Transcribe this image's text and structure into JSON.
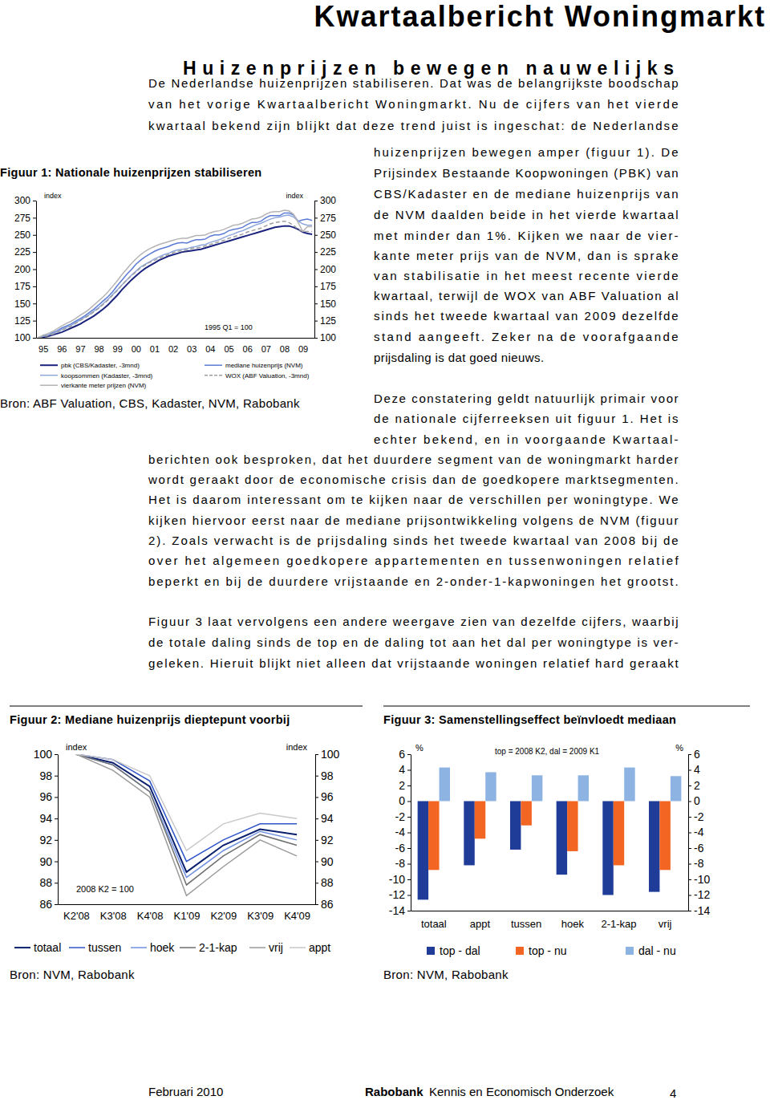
{
  "header": {
    "title": "Kwartaalbericht Woningmarkt"
  },
  "article": {
    "heading": "Huizenprijzen bewegen nauwelijks",
    "paragraphs": [
      [
        "De Nederlandse huizenprijzen stabiliseren. Dat was de belangrijkste boodschap",
        "van het vorige Kwartaalbericht Woningmarkt. Nu de cijfers van het vierde",
        "kwartaal bekend zijn blijkt dat deze trend juist is ingeschat: de Nederlandse",
        "huizenprijzen bewegen amper (figuur 1). De",
        "Prijsindex Bestaande Koopwoningen (PBK) van",
        "CBS/Kadaster en de mediane huizenprijs van",
        "de NVM daalden beide in het vierde kwartaal",
        "met minder dan 1%. Kijken we naar de vier-",
        "kante meter prijs van de NVM, dan is sprake",
        "van stabilisatie in het meest recente vierde",
        "kwartaal, terwijl de WOX van ABF Valuation al",
        "sinds het tweede kwartaal van 2009 dezelfde",
        "stand aangeeft. Zeker na de voorafgaande",
        "prijsdaling is dat goed nieuws."
      ],
      [
        "Deze constatering geldt natuurlijk primair voor",
        "de nationale cijferreeksen uit figuur 1. Het is",
        "echter bekend, en in voorgaande Kwartaal-",
        "berichten ook besproken, dat het duurdere segment van de woningmarkt harder",
        "wordt geraakt door de economische crisis dan de goedkopere marktsegmenten.",
        "Het is daarom interessant om te kijken naar de verschillen per woningtype. We",
        "kijken hiervoor eerst naar de mediane prijsontwikkeling volgens de NVM (figuur",
        "2). Zoals verwacht is de prijsdaling sinds het tweede kwartaal van 2008 bij de",
        "over het algemeen goedkopere appartementen en tussenwoningen relatief",
        "beperkt en bij de duurdere vrijstaande en 2-onder-1-kapwoningen het grootst."
      ],
      [
        "Figuur 3 laat vervolgens een andere weergave zien van dezelfde cijfers, waarbij",
        "de totale daling sinds de top en de daling tot aan het dal per woningtype is ver-",
        "geleken. Hieruit blijkt niet alleen dat vrijstaande woningen relatief hard geraakt"
      ]
    ]
  },
  "chart_data": [
    {
      "type": "line",
      "title": "Figuur 1: Nationale huizenprijzen stabiliseren",
      "source": "Bron: ABF Valuation, CBS, Kadaster, NVM, Rabobank",
      "annotation": "1995 Q1 = 100",
      "ylabel": "index",
      "y2label": "index",
      "categories": [
        null,
        "95",
        null,
        null,
        null,
        "96",
        null,
        null,
        null,
        "97",
        null,
        null,
        null,
        "98",
        null,
        null,
        null,
        "99",
        null,
        null,
        null,
        "00",
        null,
        null,
        null,
        "01",
        null,
        null,
        null,
        "02",
        null,
        null,
        null,
        "03",
        null,
        null,
        null,
        "04",
        null,
        null,
        null,
        "05",
        null,
        null,
        null,
        "06",
        null,
        null,
        null,
        "07",
        null,
        null,
        null,
        "08",
        null,
        null,
        null,
        "09",
        null,
        null
      ],
      "series": [
        {
          "name": "pbk (CBS/Kadaster, -3mnd)",
          "color": "#1a237e",
          "line_style": "solid",
          "values": [
            100,
            101,
            102,
            104,
            106,
            108,
            111,
            114,
            117,
            120,
            124,
            128,
            132,
            137,
            142,
            148,
            155,
            162,
            170,
            177,
            184,
            190,
            196,
            201,
            205,
            209,
            213,
            216,
            219,
            221,
            223,
            225,
            226,
            227,
            228,
            229,
            231,
            233,
            235,
            237,
            239,
            241,
            243,
            245,
            247,
            249,
            251,
            253,
            255,
            257,
            259,
            261,
            262,
            263,
            263,
            261,
            258,
            254,
            252,
            251
          ]
        },
        {
          "name": "mediane huizenprijs (NVM)",
          "color": "#5b7bd5",
          "line_style": "solid",
          "values": [
            100,
            103,
            104,
            107,
            110,
            114,
            117,
            120,
            124,
            128,
            132,
            137,
            142,
            148,
            154,
            160,
            167,
            176,
            184,
            192,
            199,
            207,
            213,
            218,
            222,
            226,
            229,
            231,
            233,
            236,
            238,
            239,
            238,
            241,
            243,
            243,
            244,
            248,
            250,
            250,
            252,
            256,
            258,
            259,
            261,
            265,
            268,
            268,
            270,
            275,
            278,
            278,
            278,
            282,
            282,
            279,
            270,
            272,
            273,
            271
          ]
        },
        {
          "name": "koopsommen (Kadaster, -3mnd)",
          "color": "#8fa8dc",
          "line_style": "solid",
          "values": [
            100,
            102,
            104,
            106,
            109,
            112,
            115,
            118,
            122,
            126,
            130,
            134,
            139,
            144,
            150,
            156,
            163,
            170,
            177,
            184,
            191,
            197,
            203,
            207,
            211,
            215,
            218,
            221,
            223,
            226,
            228,
            229,
            230,
            232,
            233,
            235,
            236,
            239,
            241,
            243,
            246,
            249,
            251,
            254,
            256,
            259,
            262,
            265,
            267,
            270,
            273,
            275,
            276,
            278,
            279,
            276,
            270,
            266,
            264,
            264
          ]
        },
        {
          "name": "WOX (ABF Valuation, -3mnd)",
          "color": "#9e9e9e",
          "line_style": "dashed",
          "values": [
            100,
            102,
            103,
            105,
            108,
            111,
            114,
            117,
            121,
            125,
            129,
            133,
            138,
            143,
            149,
            155,
            162,
            169,
            177,
            184,
            190,
            196,
            202,
            206,
            210,
            213,
            216,
            219,
            221,
            224,
            226,
            227,
            228,
            230,
            231,
            232,
            234,
            236,
            238,
            240,
            242,
            245,
            247,
            249,
            251,
            254,
            256,
            258,
            260,
            263,
            266,
            268,
            269,
            270,
            268,
            264,
            258,
            255,
            255,
            255
          ]
        },
        {
          "name": "vierkante meter prijzen (NVM)",
          "color": "#b4b4b4",
          "line_style": "solid",
          "values": [
            100,
            104,
            106,
            109,
            113,
            117,
            121,
            124,
            128,
            133,
            137,
            142,
            148,
            154,
            160,
            167,
            175,
            183,
            192,
            200,
            208,
            215,
            221,
            226,
            230,
            233,
            236,
            238,
            240,
            242,
            244,
            245,
            245,
            247,
            249,
            249,
            250,
            253,
            255,
            256,
            258,
            261,
            264,
            265,
            267,
            270,
            273,
            274,
            276,
            280,
            283,
            284,
            284,
            286,
            285,
            280,
            268,
            255,
            262,
            262
          ]
        }
      ],
      "ylim": [
        100,
        300
      ],
      "yticks": [
        100,
        125,
        150,
        175,
        200,
        225,
        250,
        275,
        300
      ],
      "y2lim": [
        100,
        300
      ],
      "y2ticks": [
        100,
        125,
        150,
        175,
        200,
        225,
        250,
        275,
        300
      ],
      "grid": false,
      "legend": "bottom"
    },
    {
      "type": "line",
      "title": "Figuur 2: Mediane huizenprijs dieptepunt voorbij",
      "source": "Bron: NVM, Rabobank",
      "annotation": "2008 K2 = 100",
      "ylabel": "index",
      "y2label": "index",
      "categories": [
        "K2'08",
        "K3'08",
        "K4'08",
        "K1'09",
        "K2'09",
        "K3'09",
        "K4'09"
      ],
      "series": [
        {
          "name": "totaal",
          "color": "#0a1f6e",
          "line_style": "solid",
          "values": [
            100,
            99.2,
            97.0,
            89.0,
            91.5,
            93.0,
            92.5
          ]
        },
        {
          "name": "tussen",
          "color": "#2f55c8",
          "line_style": "solid",
          "values": [
            100,
            99.5,
            97.5,
            90.0,
            92.0,
            93.5,
            93.5
          ]
        },
        {
          "name": "hoek",
          "color": "#6f8fe0",
          "line_style": "solid",
          "values": [
            100,
            99.0,
            96.5,
            88.5,
            91.0,
            92.8,
            92.0
          ]
        },
        {
          "name": "2-1-kap",
          "color": "#6e6e6e",
          "line_style": "solid",
          "values": [
            100,
            99.0,
            96.5,
            87.8,
            90.5,
            92.5,
            91.5
          ]
        },
        {
          "name": "vrij",
          "color": "#9a9a9a",
          "line_style": "solid",
          "values": [
            100,
            98.5,
            96.0,
            86.8,
            89.5,
            92.0,
            90.5
          ]
        },
        {
          "name": "appt",
          "color": "#c8c8c8",
          "line_style": "solid",
          "values": [
            100,
            99.5,
            98.0,
            91.0,
            93.5,
            94.5,
            94.0
          ]
        }
      ],
      "ylim": [
        86,
        100
      ],
      "yticks": [
        86,
        88,
        90,
        92,
        94,
        96,
        98,
        100
      ],
      "y2lim": [
        86,
        100
      ],
      "y2ticks": [
        86,
        88,
        90,
        92,
        94,
        96,
        98,
        100
      ],
      "grid": false,
      "legend": "bottom"
    },
    {
      "type": "bar",
      "title": "Figuur 3: Samenstellingseffect beïnvloedt mediaan",
      "source": "Bron: NVM, Rabobank",
      "annotation": "top = 2008 K2, dal = 2009 K1",
      "ylabel": "%",
      "y2label": "%",
      "categories": [
        "totaal",
        "appt",
        "tussen",
        "hoek",
        "2-1-kap",
        "vrij"
      ],
      "series": [
        {
          "name": "top - dal",
          "color": "#1f3c99",
          "values": [
            -12.6,
            -8.2,
            -6.2,
            -9.4,
            -12.0,
            -11.6
          ]
        },
        {
          "name": "top - nu",
          "color": "#f26522",
          "values": [
            -8.8,
            -4.8,
            -3.1,
            -6.4,
            -8.2,
            -8.8
          ]
        },
        {
          "name": "dal - nu",
          "color": "#8db3e2",
          "values": [
            4.3,
            3.7,
            3.3,
            3.3,
            4.3,
            3.2
          ]
        }
      ],
      "ylim": [
        -14,
        6
      ],
      "yticks": [
        -14,
        -12,
        -10,
        -8,
        -6,
        -4,
        -2,
        0,
        2,
        4,
        6
      ],
      "y2lim": [
        -14,
        6
      ],
      "y2ticks": [
        -14,
        -12,
        -10,
        -8,
        -6,
        -4,
        -2,
        0,
        2,
        4,
        6
      ],
      "grid": false,
      "legend": "bottom"
    }
  ],
  "footer": {
    "date": "Februari 2010",
    "organisation": "Rabobank",
    "department": "Kennis en Economisch Onderzoek",
    "page": "4"
  }
}
